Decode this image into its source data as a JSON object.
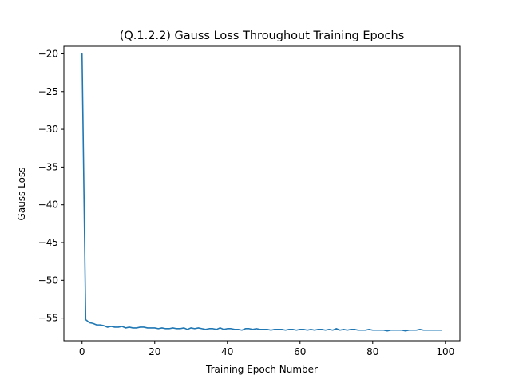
{
  "chart_data": {
    "type": "line",
    "title": "(Q.1.2.2) Gauss Loss Throughout Training Epochs",
    "xlabel": "Training Epoch Number",
    "ylabel": "Gauss Loss",
    "xlim": [
      -5,
      104
    ],
    "ylim": [
      -58,
      -19
    ],
    "xticks": [
      0,
      20,
      40,
      60,
      80,
      100
    ],
    "yticks": [
      -20,
      -25,
      -30,
      -35,
      -40,
      -45,
      -50,
      -55
    ],
    "xtick_labels": [
      "0",
      "20",
      "40",
      "60",
      "80",
      "100"
    ],
    "ytick_labels": [
      "−20",
      "−25",
      "−30",
      "−35",
      "−40",
      "−45",
      "−50",
      "−55"
    ],
    "grid": false,
    "line_color": "#1f77b4",
    "series": [
      {
        "x": [
          0,
          1,
          2,
          3,
          4,
          5,
          6,
          7,
          8,
          9,
          10,
          11,
          12,
          13,
          14,
          15,
          16,
          17,
          18,
          19,
          20,
          21,
          22,
          23,
          24,
          25,
          26,
          27,
          28,
          29,
          30,
          31,
          32,
          33,
          34,
          35,
          36,
          37,
          38,
          39,
          40,
          41,
          42,
          43,
          44,
          45,
          46,
          47,
          48,
          49,
          50,
          51,
          52,
          53,
          54,
          55,
          56,
          57,
          58,
          59,
          60,
          61,
          62,
          63,
          64,
          65,
          66,
          67,
          68,
          69,
          70,
          71,
          72,
          73,
          74,
          75,
          76,
          77,
          78,
          79,
          80,
          81,
          82,
          83,
          84,
          85,
          86,
          87,
          88,
          89,
          90,
          91,
          92,
          93,
          94,
          95,
          96,
          97,
          98,
          99
        ],
        "y": [
          -20.0,
          -55.2,
          -55.6,
          -55.7,
          -55.9,
          -55.9,
          -56.0,
          -56.2,
          -56.1,
          -56.2,
          -56.2,
          -56.1,
          -56.3,
          -56.2,
          -56.3,
          -56.3,
          -56.2,
          -56.2,
          -56.3,
          -56.3,
          -56.3,
          -56.4,
          -56.3,
          -56.4,
          -56.4,
          -56.3,
          -56.4,
          -56.4,
          -56.3,
          -56.5,
          -56.3,
          -56.4,
          -56.3,
          -56.4,
          -56.5,
          -56.4,
          -56.4,
          -56.5,
          -56.3,
          -56.5,
          -56.4,
          -56.4,
          -56.5,
          -56.5,
          -56.6,
          -56.4,
          -56.4,
          -56.5,
          -56.4,
          -56.5,
          -56.5,
          -56.5,
          -56.6,
          -56.5,
          -56.5,
          -56.5,
          -56.6,
          -56.5,
          -56.5,
          -56.6,
          -56.5,
          -56.5,
          -56.6,
          -56.5,
          -56.6,
          -56.5,
          -56.5,
          -56.6,
          -56.5,
          -56.6,
          -56.4,
          -56.6,
          -56.5,
          -56.6,
          -56.5,
          -56.5,
          -56.6,
          -56.6,
          -56.6,
          -56.5,
          -56.6,
          -56.6,
          -56.6,
          -56.6,
          -56.7,
          -56.6,
          -56.6,
          -56.6,
          -56.6,
          -56.7,
          -56.6,
          -56.6,
          -56.6,
          -56.5,
          -56.6,
          -56.6,
          -56.6,
          -56.6,
          -56.6,
          -56.6
        ]
      }
    ]
  }
}
